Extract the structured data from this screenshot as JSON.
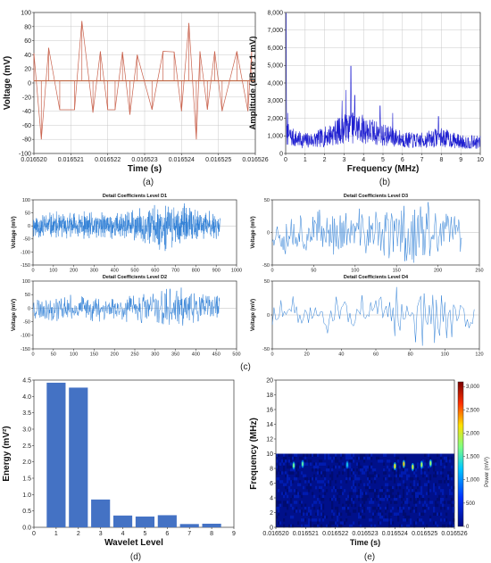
{
  "panel_labels": {
    "a": "(a)",
    "b": "(b)",
    "c": "(c)",
    "d": "(d)",
    "e": "(e)"
  },
  "colors": {
    "pulse": "#c9634e",
    "pulse_base": "#b5532a",
    "spectrum": "#1f1fd0",
    "dwt": "#2f7fd6",
    "bar": "#4472c4",
    "grid": "#c8c8c8"
  },
  "chart_data": [
    {
      "id": "a",
      "type": "line",
      "xlabel": "Time (s)",
      "ylabel": "Voltage (mV)",
      "xlim": [
        0.01652,
        0.016526
      ],
      "ylim": [
        -100,
        100
      ],
      "xticks": [
        "0.016520",
        "0.016521",
        "0.016522",
        "0.016523",
        "0.016524",
        "0.016525",
        "0.016526"
      ],
      "yticks": [
        "-100",
        "-80",
        "-60",
        "-40",
        "-20",
        "0",
        "20",
        "40",
        "60",
        "80",
        "100"
      ],
      "grid": true,
      "baseline": 3,
      "spikes": [
        [
          0.01652,
          42
        ],
        [
          0.0165202,
          -80
        ],
        [
          0.0165204,
          50
        ],
        [
          0.0165207,
          -38
        ],
        [
          0.0165211,
          -38
        ],
        [
          0.0165213,
          88
        ],
        [
          0.0165216,
          -42
        ],
        [
          0.0165218,
          45
        ],
        [
          0.016522,
          -38
        ],
        [
          0.0165222,
          -38
        ],
        [
          0.0165224,
          44
        ],
        [
          0.0165226,
          -45
        ],
        [
          0.0165228,
          40
        ],
        [
          0.0165232,
          -38
        ],
        [
          0.0165235,
          45
        ],
        [
          0.0165238,
          44
        ],
        [
          0.016524,
          -40
        ],
        [
          0.0165242,
          85
        ],
        [
          0.0165244,
          -80
        ],
        [
          0.0165245,
          45
        ],
        [
          0.0165247,
          -38
        ],
        [
          0.0165249,
          45
        ],
        [
          0.0165251,
          -40
        ],
        [
          0.0165255,
          45
        ],
        [
          0.0165258,
          -40
        ],
        [
          0.0165259,
          45
        ]
      ]
    },
    {
      "id": "b",
      "type": "line",
      "xlabel": "Frequency (MHz)",
      "ylabel": "Amplitude (dB re 1 mV)",
      "xlim": [
        0,
        10
      ],
      "ylim": [
        0,
        8000
      ],
      "xticks": [
        "0",
        "1",
        "2",
        "3",
        "4",
        "5",
        "6",
        "7",
        "8",
        "9",
        "10"
      ],
      "yticks": [
        "0",
        "1,000",
        "2,000",
        "3,000",
        "4,000",
        "5,000",
        "6,000",
        "7,000",
        "8,000"
      ],
      "grid": true,
      "peaks": [
        [
          0.02,
          7950
        ],
        [
          3.35,
          4950
        ],
        [
          3.1,
          3600
        ],
        [
          3.55,
          3300
        ],
        [
          2.9,
          3000
        ],
        [
          4.85,
          2700
        ],
        [
          5.5,
          2300
        ],
        [
          7.85,
          2100
        ],
        [
          0.1,
          2300
        ]
      ]
    },
    {
      "id": "d1",
      "type": "line",
      "title": "Detail Coefficients Level D1",
      "ylabel": "Voltage (mV)",
      "xlim": [
        0,
        1000
      ],
      "ylim": [
        -150,
        100
      ],
      "xticks": [
        "0",
        "100",
        "200",
        "300",
        "400",
        "500",
        "600",
        "700",
        "800",
        "900",
        "1000"
      ],
      "yticks": [
        "-150",
        "-100",
        "-50",
        "0",
        "50",
        "100"
      ],
      "n": 920,
      "amplitude": 45
    },
    {
      "id": "d2",
      "type": "line",
      "title": "Detail Coefficients Level D2",
      "ylabel": "Voltage (mV)",
      "xlim": [
        0,
        500
      ],
      "ylim": [
        -150,
        100
      ],
      "xticks": [
        "0",
        "50",
        "100",
        "150",
        "200",
        "250",
        "300",
        "350",
        "400",
        "450",
        "500"
      ],
      "yticks": [
        "-150",
        "-100",
        "-50",
        "0",
        "50",
        "100"
      ],
      "n": 460,
      "amplitude": 40
    },
    {
      "id": "d3",
      "type": "line",
      "title": "Detail Coefficients Level D3",
      "ylabel": "Voltage (mV)",
      "xlim": [
        0,
        250
      ],
      "ylim": [
        -50,
        50
      ],
      "xticks": [
        "0",
        "50",
        "100",
        "150",
        "200",
        "250"
      ],
      "yticks": [
        "-50",
        "0",
        "50"
      ],
      "n": 230,
      "amplitude": 30
    },
    {
      "id": "d4",
      "type": "line",
      "title": "Detail Coefficients Level D4",
      "ylabel": "Voltage (mV)",
      "xlim": [
        0,
        120
      ],
      "ylim": [
        -50,
        50
      ],
      "xticks": [
        "0",
        "20",
        "40",
        "60",
        "80",
        "100",
        "120"
      ],
      "yticks": [
        "-50",
        "0",
        "50"
      ],
      "n": 118,
      "amplitude": 24
    },
    {
      "id": "d",
      "type": "bar",
      "xlabel": "Wavelet Level",
      "ylabel": "Energy (mV²)",
      "categories": [
        "1",
        "2",
        "3",
        "4",
        "5",
        "6",
        "7",
        "8"
      ],
      "values": [
        4.42,
        4.27,
        0.85,
        0.36,
        0.33,
        0.37,
        0.1,
        0.11
      ],
      "xlim": [
        0,
        9
      ],
      "ylim": [
        0,
        4.5
      ],
      "xticks": [
        "0",
        "1",
        "2",
        "3",
        "4",
        "5",
        "6",
        "7",
        "8",
        "9"
      ],
      "yticks": [
        "0.0",
        "0.5",
        "1.0",
        "1.5",
        "2.0",
        "2.5",
        "3.0",
        "3.5",
        "4.0",
        "4.5"
      ]
    },
    {
      "id": "e",
      "type": "heatmap",
      "xlabel": "Time (s)",
      "ylabel": "Frequency (MHz)",
      "colorbar_label": "Power (mV²)",
      "xlim": [
        0.01652,
        0.016526
      ],
      "ylim": [
        0,
        20
      ],
      "xticks": [
        "0.016520",
        "0.016521",
        "0.016522",
        "0.016523",
        "0.016524",
        "0.016525",
        "0.016526"
      ],
      "yticks": [
        "0",
        "2",
        "4",
        "6",
        "8",
        "10",
        "12",
        "14",
        "16",
        "18",
        "20"
      ],
      "cbar_range": [
        0,
        3100
      ],
      "cbar_ticks": [
        "0",
        "500",
        "1,000",
        "1,500",
        "2,000",
        "2,500",
        "3,000"
      ],
      "band_max_freq": 10,
      "hotspots": [
        [
          0.0165206,
          8.4,
          0.55
        ],
        [
          0.0165209,
          8.6,
          0.5
        ],
        [
          0.016524,
          8.3,
          0.75
        ],
        [
          0.0165243,
          8.6,
          0.8
        ],
        [
          0.0165246,
          8.2,
          0.7
        ],
        [
          0.0165249,
          8.5,
          0.65
        ],
        [
          0.0165252,
          8.7,
          0.6
        ],
        [
          0.0165224,
          8.5,
          0.35
        ]
      ]
    }
  ]
}
